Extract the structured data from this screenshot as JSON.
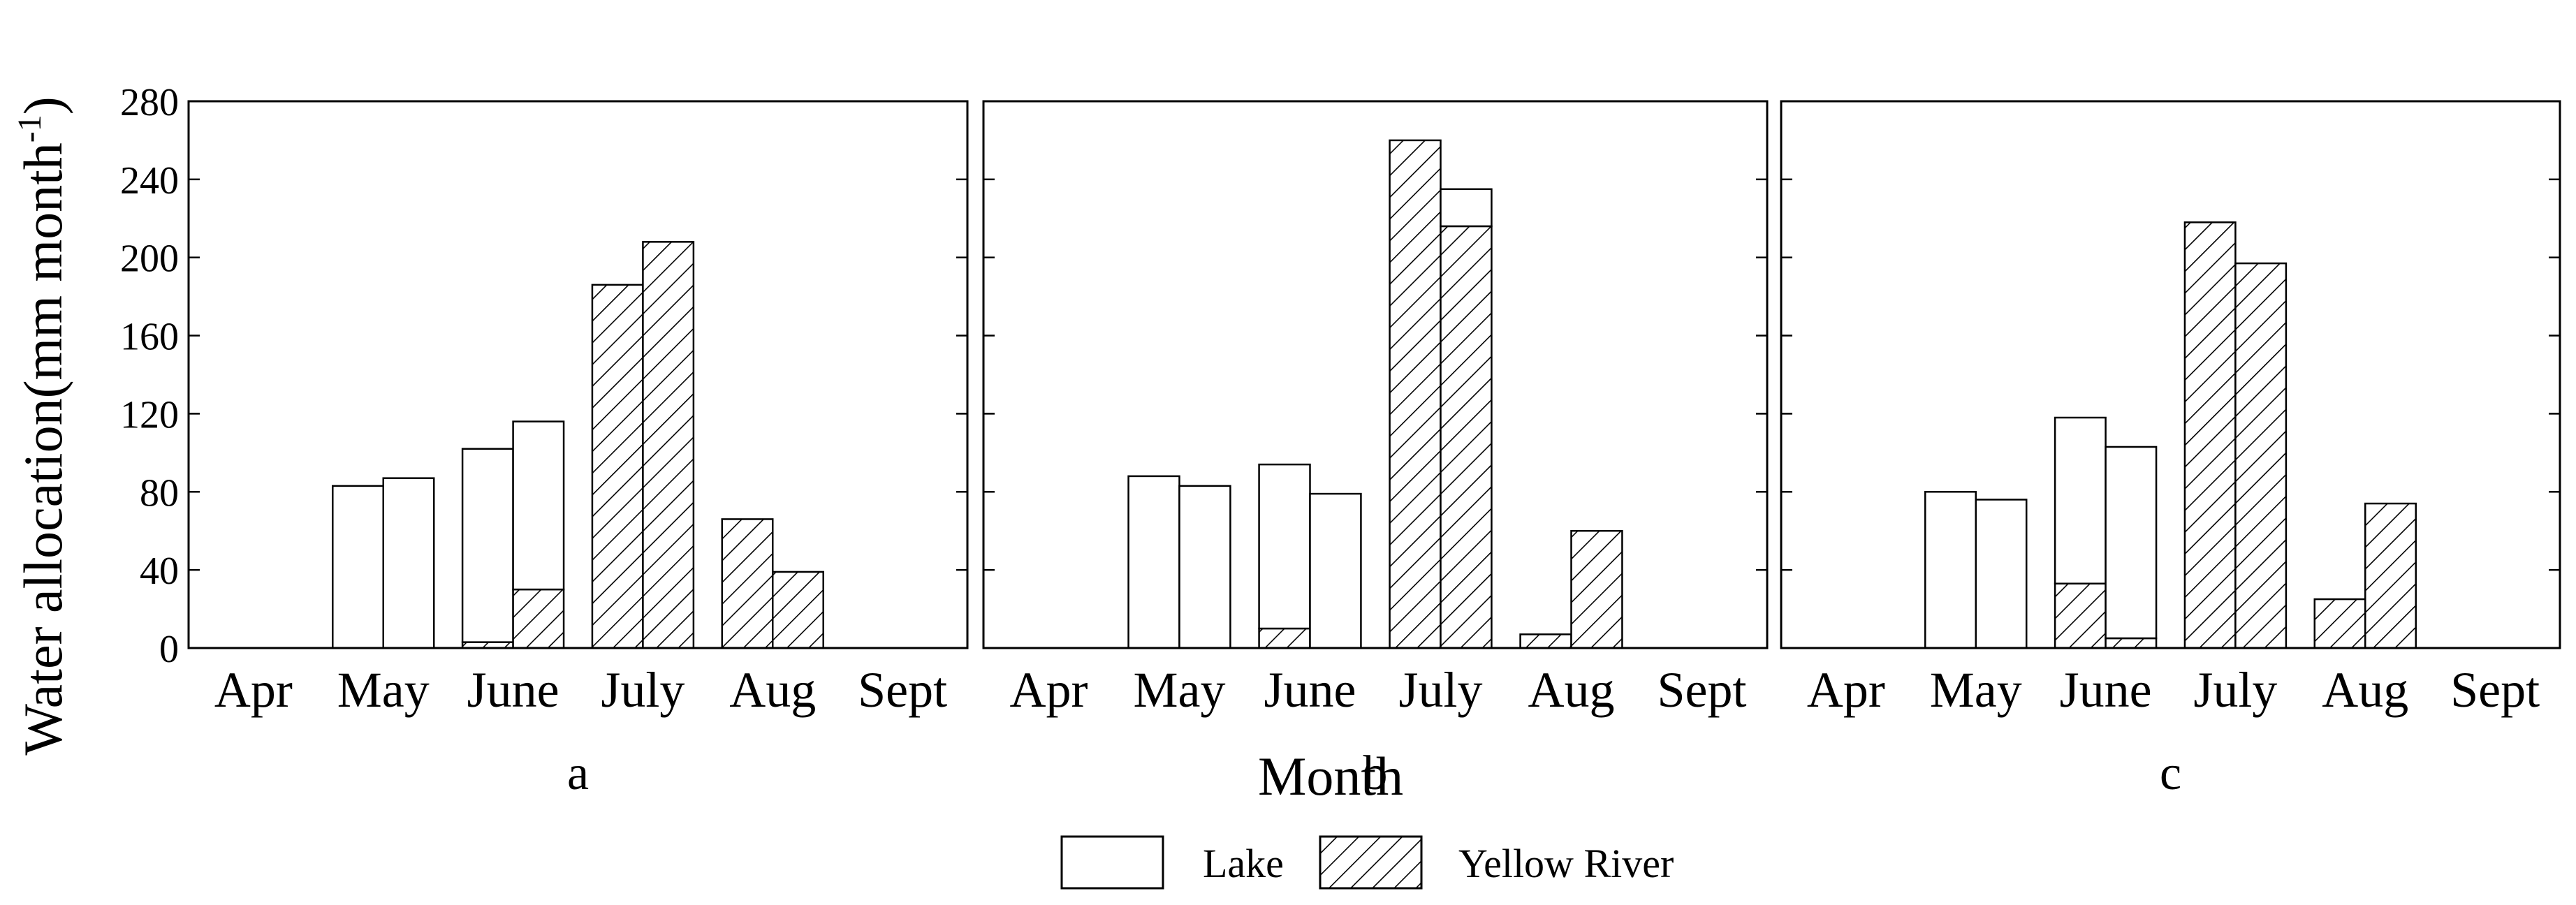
{
  "figure": {
    "ylabel": "Water allocation(mm month",
    "ylabel_sup": "-1",
    "ylabel_close": ")",
    "xlabel": "Month",
    "legend": [
      {
        "label": "Lake",
        "pattern": "none"
      },
      {
        "label": "Yellow River",
        "pattern": "hatch"
      }
    ]
  },
  "chart_data": [
    {
      "type": "bar",
      "panel_label": "a",
      "categories": [
        "Apr",
        "May",
        "June",
        "July",
        "Aug",
        "Sept"
      ],
      "ylim": [
        0,
        280
      ],
      "yticks": [
        0,
        40,
        80,
        120,
        160,
        200,
        240,
        280
      ],
      "bars_per_category": 2,
      "stack_order": [
        "Yellow River",
        "Lake"
      ],
      "series": [
        {
          "name": "Lake",
          "values": [
            [
              0,
              0
            ],
            [
              83,
              87
            ],
            [
              99,
              86
            ],
            [
              0,
              0
            ],
            [
              0,
              0
            ],
            [
              0,
              0
            ]
          ]
        },
        {
          "name": "Yellow River",
          "values": [
            [
              0,
              0
            ],
            [
              0,
              0
            ],
            [
              3,
              30
            ],
            [
              186,
              208
            ],
            [
              66,
              39
            ],
            [
              0,
              0
            ]
          ]
        }
      ]
    },
    {
      "type": "bar",
      "panel_label": "b",
      "categories": [
        "Apr",
        "May",
        "June",
        "July",
        "Aug",
        "Sept"
      ],
      "ylim": [
        0,
        280
      ],
      "yticks": [
        0,
        40,
        80,
        120,
        160,
        200,
        240,
        280
      ],
      "bars_per_category": 2,
      "stack_order": [
        "Yellow River",
        "Lake"
      ],
      "series": [
        {
          "name": "Lake",
          "values": [
            [
              0,
              0
            ],
            [
              88,
              83
            ],
            [
              84,
              79
            ],
            [
              0,
              19
            ],
            [
              0,
              0
            ],
            [
              0,
              0
            ]
          ]
        },
        {
          "name": "Yellow River",
          "values": [
            [
              0,
              0
            ],
            [
              0,
              0
            ],
            [
              10,
              0
            ],
            [
              260,
              216
            ],
            [
              7,
              60
            ],
            [
              0,
              0
            ]
          ]
        }
      ]
    },
    {
      "type": "bar",
      "panel_label": "c",
      "categories": [
        "Apr",
        "May",
        "June",
        "July",
        "Aug",
        "Sept"
      ],
      "ylim": [
        0,
        280
      ],
      "yticks": [
        0,
        40,
        80,
        120,
        160,
        200,
        240,
        280
      ],
      "bars_per_category": 2,
      "stack_order": [
        "Yellow River",
        "Lake"
      ],
      "series": [
        {
          "name": "Lake",
          "values": [
            [
              0,
              0
            ],
            [
              80,
              76
            ],
            [
              85,
              98
            ],
            [
              0,
              0
            ],
            [
              0,
              0
            ],
            [
              0,
              0
            ]
          ]
        },
        {
          "name": "Yellow River",
          "values": [
            [
              0,
              0
            ],
            [
              0,
              0
            ],
            [
              33,
              5
            ],
            [
              218,
              197
            ],
            [
              25,
              74
            ],
            [
              0,
              0
            ]
          ]
        }
      ]
    }
  ]
}
